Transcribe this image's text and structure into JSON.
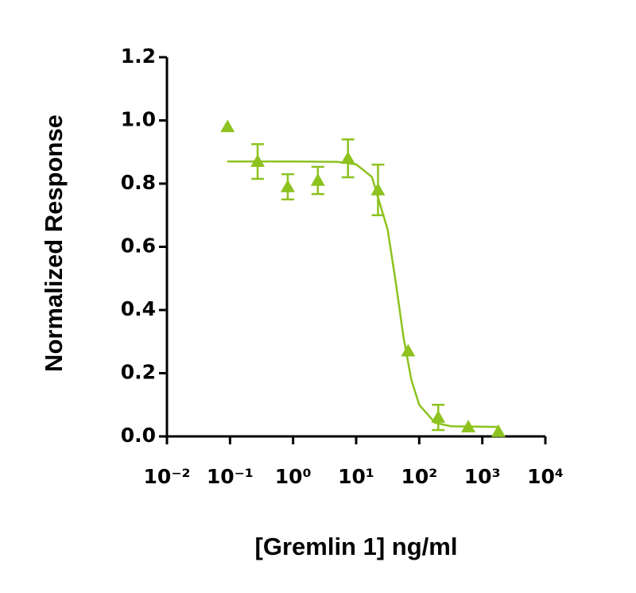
{
  "chart_data": {
    "type": "scatter",
    "xlabel": "[Gremlin 1] ng/ml",
    "ylabel": "Normalized Response",
    "xscale": "log",
    "xlim": [
      0.01,
      10000
    ],
    "xticks": [
      {
        "value": 0.01,
        "label": "10⁻²"
      },
      {
        "value": 0.1,
        "label": "10⁻¹"
      },
      {
        "value": 1,
        "label": "10⁰"
      },
      {
        "value": 10,
        "label": "10¹"
      },
      {
        "value": 100,
        "label": "10²"
      },
      {
        "value": 1000,
        "label": "10³"
      },
      {
        "value": 10000,
        "label": "10⁴"
      }
    ],
    "ylim": [
      0,
      1.2
    ],
    "yticks": [
      {
        "value": 0,
        "label": "0.0"
      },
      0.2,
      0.4,
      0.6,
      0.8,
      {
        "value": 1,
        "label": "1.0"
      },
      1.2
    ],
    "series": [
      {
        "color": "#8dc21f",
        "marker": "triangle",
        "x": [
          0.0914,
          0.274,
          0.823,
          2.47,
          7.41,
          22.2,
          66.7,
          200,
          600,
          1800
        ],
        "values": [
          0.98,
          0.87,
          0.79,
          0.81,
          0.88,
          0.78,
          0.27,
          0.06,
          0.03,
          0.015
        ],
        "errors": [
          null,
          0.055,
          0.04,
          0.043,
          0.06,
          0.08,
          null,
          0.04,
          null,
          null
        ]
      }
    ],
    "fit": {
      "color": "#8dc21f",
      "x": [
        0.09,
        1,
        5,
        10,
        17.8,
        31.6,
        42.2,
        56.2,
        75,
        100,
        178,
        316,
        1800
      ],
      "values": [
        0.87,
        0.87,
        0.869,
        0.861,
        0.821,
        0.654,
        0.491,
        0.315,
        0.179,
        0.1,
        0.043,
        0.032,
        0.03
      ]
    }
  }
}
